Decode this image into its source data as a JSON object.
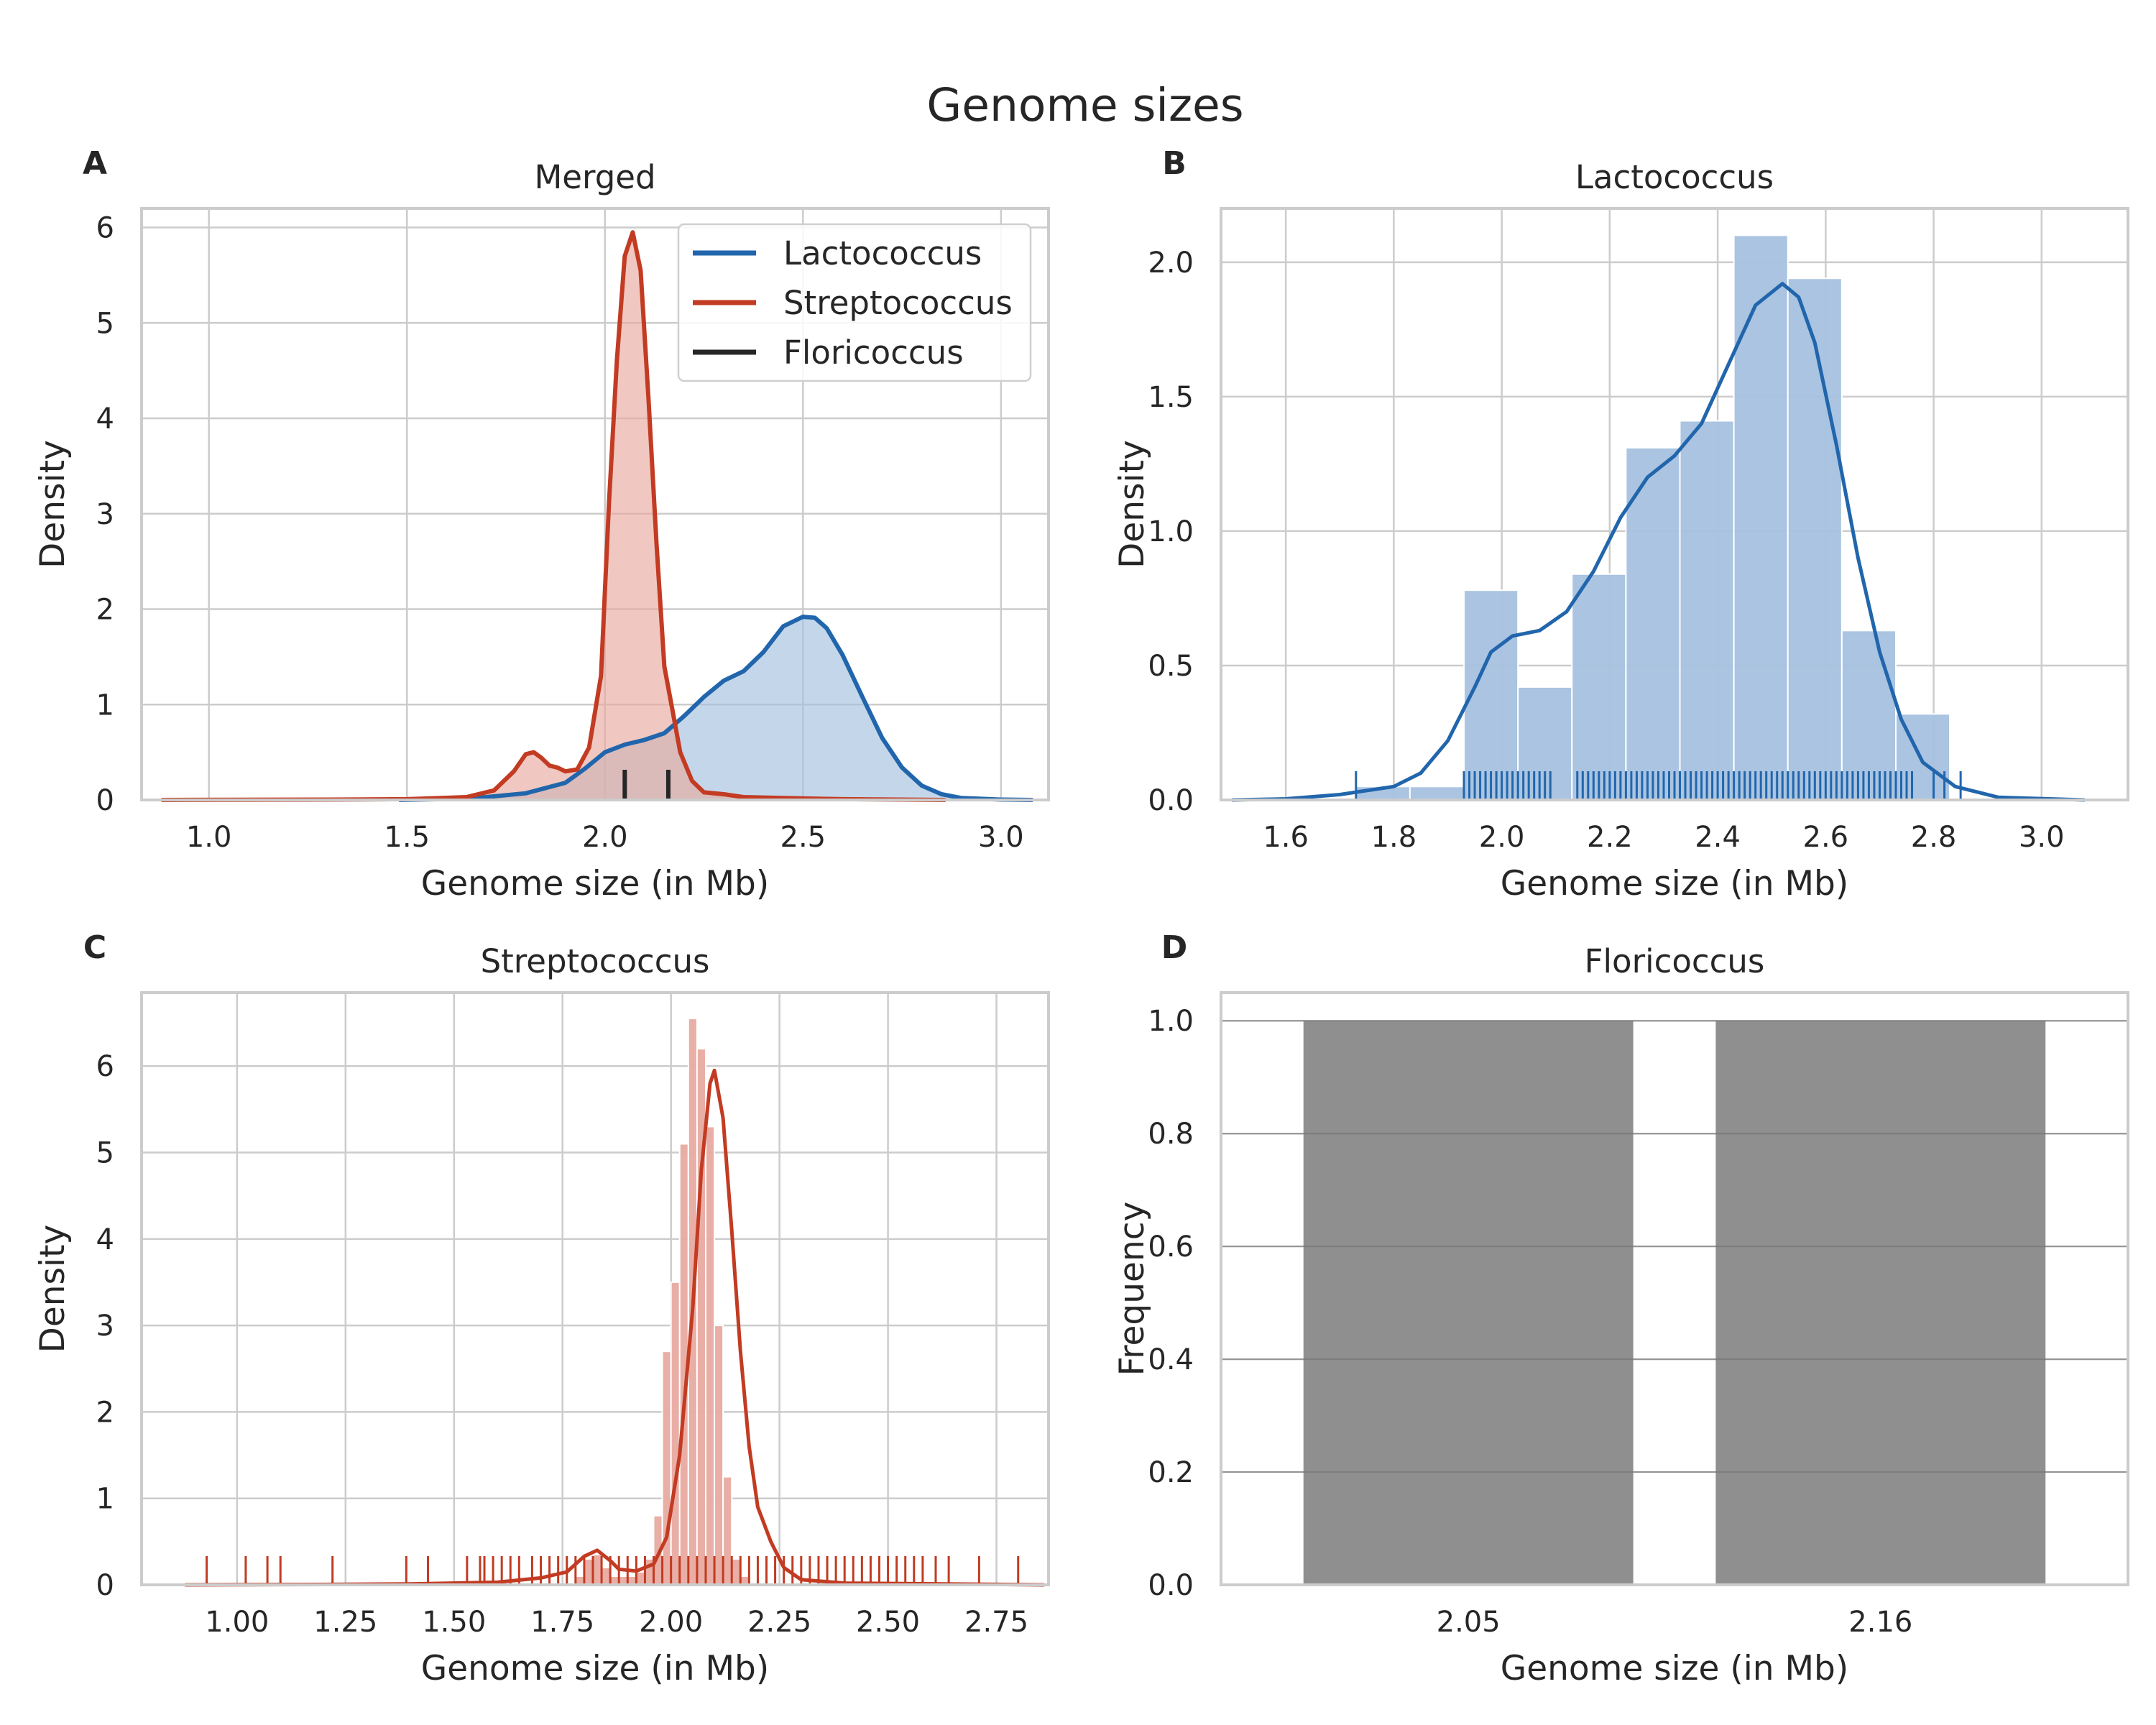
{
  "figure": {
    "title": "Genome sizes"
  },
  "colors": {
    "lactococcus": "#2166ac",
    "lactococcus_fill": "#a5c1df",
    "streptococcus": "#c23b22",
    "streptococcus_fill": "#e8aaa0",
    "floricoccus": "#262626",
    "floricoccus_bar": "#8f8f8f",
    "grid": "#cccccc",
    "frame": "#cccccc"
  },
  "chart_data": [
    {
      "id": "A",
      "type": "area",
      "panel_label": "A",
      "title": "Merged",
      "xlabel": "Genome size (in Mb)",
      "ylabel": "Density",
      "xlim": [
        0.83,
        3.12
      ],
      "ylim": [
        0,
        6.2
      ],
      "xticks": [
        1.0,
        1.5,
        2.0,
        2.5,
        3.0
      ],
      "xtick_labels": [
        "1.0",
        "1.5",
        "2.0",
        "2.5",
        "3.0"
      ],
      "yticks": [
        0,
        1,
        2,
        3,
        4,
        5,
        6
      ],
      "ytick_labels": [
        "0",
        "1",
        "2",
        "3",
        "4",
        "5",
        "6"
      ],
      "grid": true,
      "legend": {
        "position": "top-right",
        "entries": [
          "Lactococcus",
          "Streptococcus",
          "Floricoccus"
        ]
      },
      "series": [
        {
          "name": "Lactococcus",
          "kind": "kde",
          "color_key": "lactococcus",
          "points": [
            [
              1.48,
              0
            ],
            [
              1.6,
              0.01
            ],
            [
              1.7,
              0.03
            ],
            [
              1.8,
              0.07
            ],
            [
              1.9,
              0.18
            ],
            [
              1.95,
              0.33
            ],
            [
              2.0,
              0.5
            ],
            [
              2.05,
              0.58
            ],
            [
              2.1,
              0.63
            ],
            [
              2.15,
              0.7
            ],
            [
              2.2,
              0.88
            ],
            [
              2.25,
              1.08
            ],
            [
              2.3,
              1.25
            ],
            [
              2.35,
              1.35
            ],
            [
              2.4,
              1.55
            ],
            [
              2.45,
              1.82
            ],
            [
              2.5,
              1.92
            ],
            [
              2.53,
              1.91
            ],
            [
              2.56,
              1.8
            ],
            [
              2.6,
              1.52
            ],
            [
              2.65,
              1.08
            ],
            [
              2.7,
              0.65
            ],
            [
              2.75,
              0.34
            ],
            [
              2.8,
              0.15
            ],
            [
              2.85,
              0.06
            ],
            [
              2.9,
              0.02
            ],
            [
              3.0,
              0.004
            ],
            [
              3.08,
              0
            ]
          ]
        },
        {
          "name": "Streptococcus",
          "kind": "kde",
          "color_key": "streptococcus",
          "points": [
            [
              0.88,
              0
            ],
            [
              1.3,
              0.004
            ],
            [
              1.5,
              0.008
            ],
            [
              1.65,
              0.03
            ],
            [
              1.72,
              0.1
            ],
            [
              1.77,
              0.3
            ],
            [
              1.8,
              0.48
            ],
            [
              1.82,
              0.5
            ],
            [
              1.84,
              0.44
            ],
            [
              1.86,
              0.36
            ],
            [
              1.88,
              0.34
            ],
            [
              1.9,
              0.3
            ],
            [
              1.93,
              0.32
            ],
            [
              1.96,
              0.55
            ],
            [
              1.99,
              1.3
            ],
            [
              2.01,
              3.1
            ],
            [
              2.03,
              4.6
            ],
            [
              2.05,
              5.7
            ],
            [
              2.07,
              5.95
            ],
            [
              2.09,
              5.55
            ],
            [
              2.11,
              4.2
            ],
            [
              2.13,
              2.7
            ],
            [
              2.15,
              1.4
            ],
            [
              2.17,
              0.95
            ],
            [
              2.19,
              0.5
            ],
            [
              2.22,
              0.2
            ],
            [
              2.25,
              0.08
            ],
            [
              2.3,
              0.06
            ],
            [
              2.35,
              0.03
            ],
            [
              2.45,
              0.02
            ],
            [
              2.6,
              0.008
            ],
            [
              2.86,
              0
            ]
          ]
        },
        {
          "name": "Floricoccus",
          "kind": "rug",
          "color_key": "floricoccus",
          "values": [
            2.05,
            2.16
          ]
        }
      ]
    },
    {
      "id": "B",
      "type": "bar",
      "panel_label": "B",
      "title": "Lactococcus",
      "xlabel": "Genome size (in Mb)",
      "ylabel": "Density",
      "xlim": [
        1.48,
        3.16
      ],
      "ylim": [
        0,
        2.2
      ],
      "xticks": [
        1.6,
        1.8,
        2.0,
        2.2,
        2.4,
        2.6,
        2.8,
        3.0
      ],
      "xtick_labels": [
        "1.6",
        "1.8",
        "2.0",
        "2.2",
        "2.4",
        "2.6",
        "2.8",
        "3.0"
      ],
      "yticks": [
        0,
        0.5,
        1.0,
        1.5,
        2.0
      ],
      "ytick_labels": [
        "0.0",
        "0.5",
        "1.0",
        "1.5",
        "2.0"
      ],
      "grid": true,
      "histogram": {
        "bin_edges": [
          1.73,
          1.83,
          1.93,
          2.03,
          2.13,
          2.23,
          2.33,
          2.43,
          2.53,
          2.63,
          2.73,
          2.83
        ],
        "values": [
          0.05,
          0.05,
          0.78,
          0.42,
          0.84,
          1.31,
          1.41,
          2.1,
          1.94,
          0.63,
          0.32
        ]
      },
      "kde": {
        "name": "Lactococcus",
        "points": [
          [
            1.5,
            0
          ],
          [
            1.6,
            0.004
          ],
          [
            1.7,
            0.02
          ],
          [
            1.8,
            0.05
          ],
          [
            1.85,
            0.1
          ],
          [
            1.9,
            0.22
          ],
          [
            1.95,
            0.42
          ],
          [
            1.98,
            0.55
          ],
          [
            2.02,
            0.61
          ],
          [
            2.07,
            0.63
          ],
          [
            2.12,
            0.7
          ],
          [
            2.17,
            0.85
          ],
          [
            2.22,
            1.05
          ],
          [
            2.27,
            1.2
          ],
          [
            2.32,
            1.28
          ],
          [
            2.37,
            1.4
          ],
          [
            2.42,
            1.62
          ],
          [
            2.47,
            1.84
          ],
          [
            2.52,
            1.92
          ],
          [
            2.55,
            1.87
          ],
          [
            2.58,
            1.7
          ],
          [
            2.62,
            1.32
          ],
          [
            2.66,
            0.9
          ],
          [
            2.7,
            0.55
          ],
          [
            2.74,
            0.3
          ],
          [
            2.78,
            0.14
          ],
          [
            2.84,
            0.05
          ],
          [
            2.92,
            0.01
          ],
          [
            3.08,
            0
          ]
        ]
      },
      "rug": [
        1.73,
        1.93,
        1.94,
        1.95,
        1.96,
        1.97,
        1.98,
        1.99,
        2.0,
        2.01,
        2.02,
        2.03,
        2.04,
        2.05,
        2.06,
        2.07,
        2.08,
        2.09,
        2.14,
        2.15,
        2.16,
        2.17,
        2.18,
        2.19,
        2.2,
        2.21,
        2.22,
        2.23,
        2.24,
        2.25,
        2.26,
        2.27,
        2.28,
        2.29,
        2.3,
        2.31,
        2.32,
        2.33,
        2.34,
        2.35,
        2.36,
        2.37,
        2.38,
        2.39,
        2.4,
        2.41,
        2.42,
        2.43,
        2.44,
        2.45,
        2.46,
        2.47,
        2.48,
        2.49,
        2.5,
        2.51,
        2.52,
        2.53,
        2.54,
        2.55,
        2.56,
        2.57,
        2.58,
        2.59,
        2.6,
        2.61,
        2.62,
        2.63,
        2.64,
        2.65,
        2.66,
        2.67,
        2.68,
        2.69,
        2.7,
        2.71,
        2.72,
        2.73,
        2.74,
        2.75,
        2.76,
        2.8,
        2.82,
        2.85
      ]
    },
    {
      "id": "C",
      "type": "bar",
      "panel_label": "C",
      "title": "Streptococcus",
      "xlabel": "Genome size (in Mb)",
      "ylabel": "Density",
      "xlim": [
        0.78,
        2.87
      ],
      "ylim": [
        0,
        6.85
      ],
      "xticks": [
        1.0,
        1.25,
        1.5,
        1.75,
        2.0,
        2.25,
        2.5,
        2.75
      ],
      "xtick_labels": [
        "1.00",
        "1.25",
        "1.50",
        "1.75",
        "2.00",
        "2.25",
        "2.50",
        "2.75"
      ],
      "yticks": [
        0,
        1,
        2,
        3,
        4,
        5,
        6
      ],
      "ytick_labels": [
        "0",
        "1",
        "2",
        "3",
        "4",
        "5",
        "6"
      ],
      "grid": true,
      "histogram": {
        "bin_edges": [
          1.78,
          1.8,
          1.82,
          1.84,
          1.86,
          1.88,
          1.9,
          1.92,
          1.94,
          1.96,
          1.98,
          2.0,
          2.02,
          2.04,
          2.06,
          2.08,
          2.1,
          2.12,
          2.14,
          2.16,
          2.18
        ],
        "values": [
          0.1,
          0.3,
          0.35,
          0.2,
          0.1,
          0.1,
          0.1,
          0.15,
          0.3,
          0.8,
          2.7,
          3.5,
          5.1,
          6.55,
          6.2,
          5.3,
          3.0,
          1.25,
          0.3,
          0.1
        ]
      },
      "kde": {
        "name": "Streptococcus",
        "points": [
          [
            0.88,
            0
          ],
          [
            1.2,
            0.004
          ],
          [
            1.4,
            0.01
          ],
          [
            1.6,
            0.03
          ],
          [
            1.7,
            0.08
          ],
          [
            1.76,
            0.15
          ],
          [
            1.8,
            0.33
          ],
          [
            1.83,
            0.4
          ],
          [
            1.86,
            0.28
          ],
          [
            1.88,
            0.18
          ],
          [
            1.92,
            0.16
          ],
          [
            1.96,
            0.24
          ],
          [
            1.99,
            0.55
          ],
          [
            2.02,
            1.5
          ],
          [
            2.05,
            3.2
          ],
          [
            2.07,
            4.8
          ],
          [
            2.09,
            5.8
          ],
          [
            2.1,
            5.95
          ],
          [
            2.12,
            5.4
          ],
          [
            2.14,
            4.1
          ],
          [
            2.16,
            2.7
          ],
          [
            2.18,
            1.6
          ],
          [
            2.2,
            0.9
          ],
          [
            2.23,
            0.5
          ],
          [
            2.26,
            0.2
          ],
          [
            2.3,
            0.06
          ],
          [
            2.4,
            0.02
          ],
          [
            2.86,
            0
          ]
        ]
      },
      "rug": [
        0.93,
        1.02,
        1.07,
        1.1,
        1.22,
        1.39,
        1.44,
        1.53,
        1.56,
        1.57,
        1.59,
        1.61,
        1.63,
        1.65,
        1.68,
        1.7,
        1.72,
        1.74,
        1.76,
        1.78,
        1.8,
        1.82,
        1.84,
        1.86,
        1.88,
        1.9,
        1.92,
        1.94,
        1.96,
        1.98,
        2.0,
        2.02,
        2.04,
        2.06,
        2.08,
        2.1,
        2.12,
        2.14,
        2.16,
        2.18,
        2.2,
        2.22,
        2.24,
        2.26,
        2.28,
        2.3,
        2.32,
        2.34,
        2.36,
        2.38,
        2.4,
        2.42,
        2.44,
        2.46,
        2.48,
        2.5,
        2.52,
        2.54,
        2.56,
        2.58,
        2.61,
        2.64,
        2.71,
        2.8
      ]
    },
    {
      "id": "D",
      "type": "bar",
      "panel_label": "D",
      "title": "Floricoccus",
      "xlabel": "Genome size (in Mb)",
      "ylabel": "Frequency",
      "categories": [
        "2.05",
        "2.16"
      ],
      "values": [
        1.0,
        1.0
      ],
      "ylim": [
        0,
        1.05
      ],
      "yticks": [
        0,
        0.2,
        0.4,
        0.6,
        0.8,
        1.0
      ],
      "ytick_labels": [
        "0.0",
        "0.2",
        "0.4",
        "0.6",
        "0.8",
        "1.0"
      ],
      "grid": true
    }
  ]
}
